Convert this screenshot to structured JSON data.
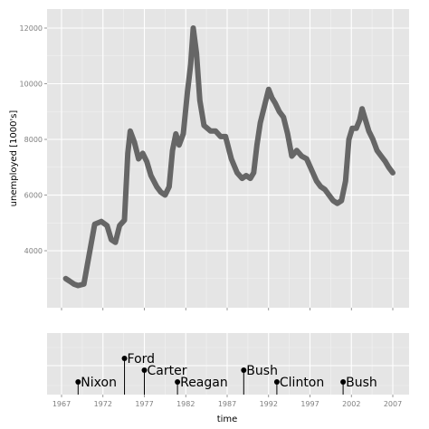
{
  "chart_data": [
    {
      "type": "line",
      "xlabel": "",
      "ylabel": "unemployed [1000's]",
      "xlim": [
        1967,
        2007
      ],
      "ylim": [
        2700,
        12100
      ],
      "y_ticks": [
        4000,
        6000,
        8000,
        10000,
        12000
      ],
      "y_tick_labels": [
        "4000",
        "6000",
        "8000",
        "10000",
        "12000"
      ],
      "x_ticks": [
        1967,
        1972,
        1977,
        1982,
        1987,
        1992,
        1997,
        2002,
        2007
      ],
      "x_tick_labels": [],
      "grid": true,
      "series": [
        {
          "color": "#666666",
          "x": [
            1967.5,
            1968.0,
            1968.5,
            1969.0,
            1969.7,
            1970.3,
            1971.0,
            1971.8,
            1972.5,
            1973.0,
            1973.5,
            1974.0,
            1974.6,
            1975.0,
            1975.3,
            1975.8,
            1976.3,
            1976.8,
            1977.3,
            1977.8,
            1978.5,
            1979.0,
            1979.5,
            1980.0,
            1980.4,
            1980.8,
            1981.2,
            1981.7,
            1982.2,
            1982.6,
            1982.9,
            1983.3,
            1983.7,
            1984.2,
            1985.0,
            1985.6,
            1986.2,
            1986.8,
            1987.5,
            1988.2,
            1988.8,
            1989.3,
            1989.8,
            1990.2,
            1990.6,
            1991.0,
            1991.5,
            1992.0,
            1992.4,
            1992.8,
            1993.3,
            1993.8,
            1994.3,
            1994.8,
            1995.4,
            1996.0,
            1996.6,
            1997.2,
            1997.8,
            1998.3,
            1998.8,
            1999.3,
            1999.8,
            2000.3,
            2000.8,
            2001.3,
            2001.7,
            2002.1,
            2002.6,
            2003.0,
            2003.3,
            2003.7,
            2004.1,
            2004.6,
            2005.1,
            2005.6,
            2006.1,
            2006.5,
            2007.0
          ],
          "y": [
            3000,
            2900,
            2800,
            2750,
            2800,
            3800,
            4950,
            5050,
            4900,
            4400,
            4300,
            4900,
            5100,
            7500,
            8300,
            7900,
            7300,
            7500,
            7200,
            6700,
            6300,
            6100,
            6000,
            6300,
            7600,
            8200,
            7800,
            8200,
            9700,
            10700,
            12000,
            11100,
            9400,
            8500,
            8300,
            8300,
            8100,
            8100,
            7300,
            6800,
            6600,
            6700,
            6600,
            6800,
            7800,
            8600,
            9200,
            9800,
            9500,
            9300,
            9000,
            8800,
            8200,
            7400,
            7600,
            7400,
            7300,
            6900,
            6500,
            6300,
            6200,
            6000,
            5800,
            5700,
            5800,
            6500,
            8000,
            8400,
            8400,
            8700,
            9100,
            8700,
            8300,
            8000,
            7600,
            7400,
            7200,
            7000,
            6800
          ]
        }
      ]
    },
    {
      "type": "scatter",
      "xlabel": "time",
      "ylabel": "",
      "xlim": [
        1967,
        2007
      ],
      "x_ticks": [
        1967,
        1972,
        1977,
        1982,
        1987,
        1992,
        1997,
        2002,
        2007
      ],
      "x_tick_labels": [
        "1967",
        "1972",
        "1977",
        "1982",
        "1987",
        "1992",
        "1997",
        "2002",
        "2007"
      ],
      "grid": true,
      "points": [
        {
          "label": "Nixon",
          "x": 1969.0,
          "level": 1
        },
        {
          "label": "Ford",
          "x": 1974.6,
          "level": 3
        },
        {
          "label": "Carter",
          "x": 1977.0,
          "level": 2
        },
        {
          "label": "Reagan",
          "x": 1981.0,
          "level": 1
        },
        {
          "label": "Bush",
          "x": 1989.0,
          "level": 2
        },
        {
          "label": "Clinton",
          "x": 1993.0,
          "level": 1
        },
        {
          "label": "Bush",
          "x": 2001.0,
          "level": 1
        }
      ]
    }
  ]
}
